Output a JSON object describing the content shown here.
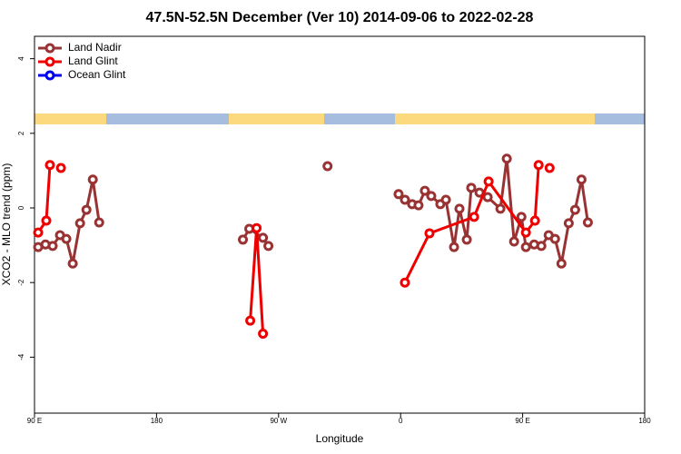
{
  "chart_data": {
    "type": "line",
    "title": "47.5N-52.5N December (Ver 10)   2014-09-06 to 2022-02-28",
    "x_label": "Longitude",
    "y_label": "XCO2 - MLO trend (ppm)",
    "xlim": [
      90,
      540
    ],
    "ylim": [
      -5.5,
      4.6
    ],
    "xticks": [
      {
        "value": 90,
        "label": "90 E"
      },
      180,
      {
        "value": 270,
        "label": "90 W"
      },
      {
        "value": 360,
        "label": "0"
      },
      {
        "value": 450,
        "label": "90 E"
      },
      {
        "value": 540,
        "label": "180"
      }
    ],
    "yticks": [
      -4,
      -2,
      0,
      2,
      4
    ],
    "legend": "top-left",
    "series": [
      {
        "name": "Land Nadir",
        "color": "#993333",
        "x": [
          92.7,
          98.1,
          103.4,
          108.8,
          113.5,
          118.2,
          123.6,
          128.3,
          133,
          137.7,
          null,
          243.7,
          248.4,
          258.5,
          262.5,
          null,
          306.1,
          null,
          358.5,
          363.2,
          368.5,
          373.2,
          377.9,
          382.6,
          389.3,
          393.4,
          399.4,
          403.4,
          408.8,
          412.1,
          418.2,
          424.2,
          433.6,
          438.3,
          443.7,
          449.1,
          452.4,
          458.5,
          463.8,
          469.2,
          473.9,
          478.6,
          484,
          488.7,
          493.4,
          498.1
        ],
        "values": [
          -1.05,
          -0.98,
          -1.02,
          -0.73,
          -0.83,
          -1.49,
          -0.41,
          -0.05,
          0.76,
          -0.39,
          null,
          -0.85,
          -0.56,
          -0.8,
          -1.02,
          null,
          1.12,
          null,
          0.37,
          0.22,
          0.1,
          0.07,
          0.46,
          0.32,
          0.1,
          0.22,
          -1.05,
          -0.02,
          -0.85,
          0.54,
          0.41,
          0.29,
          -0.02,
          1.32,
          -0.9,
          -0.24,
          -1.05,
          -0.98,
          -1.02,
          -0.73,
          -0.83,
          -1.49,
          -0.41,
          -0.05,
          0.76,
          -0.39
        ]
      },
      {
        "name": "Land Glint",
        "color": "#ee0000",
        "x": [
          92.7,
          98.7,
          101.4,
          null,
          109.5,
          null,
          249.1,
          253.8,
          258.5,
          null,
          363.2,
          381.3,
          414.2,
          424.9,
          452.4,
          459.1,
          461.8,
          null,
          469.9
        ],
        "values": [
          -0.66,
          -0.34,
          1.15,
          null,
          1.07,
          null,
          -3.02,
          -0.54,
          -3.37,
          null,
          -2.0,
          -0.68,
          -0.24,
          0.71,
          -0.66,
          -0.34,
          1.15,
          null,
          1.07
        ]
      },
      {
        "name": "Ocean Glint",
        "color": "#0000ee",
        "x": [],
        "values": []
      }
    ]
  }
}
